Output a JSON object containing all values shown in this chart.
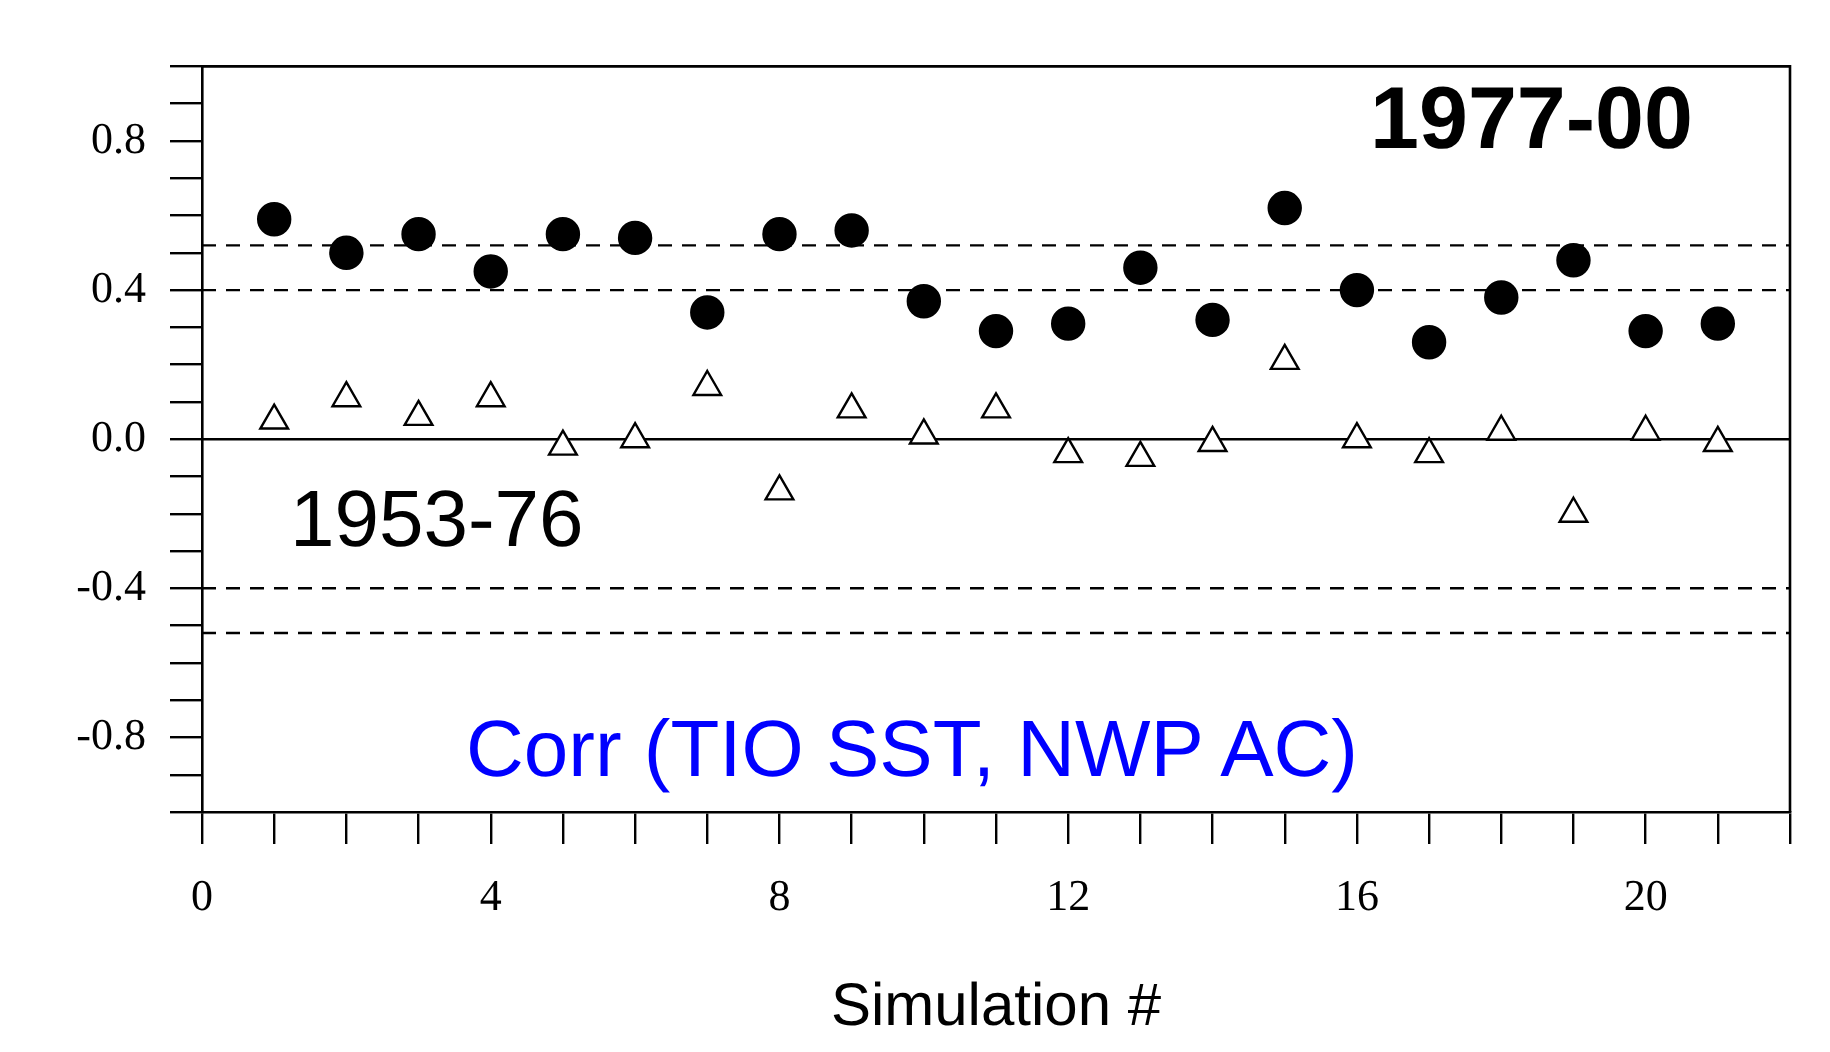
{
  "chart_data": {
    "type": "scatter",
    "xlabel": "Simulation #",
    "x": [
      1,
      2,
      3,
      4,
      5,
      6,
      7,
      8,
      9,
      10,
      11,
      12,
      13,
      14,
      15,
      16,
      17,
      18,
      19,
      20,
      21
    ],
    "series": [
      {
        "color": "#000000",
        "marker": "circle",
        "values": [
          0.59,
          0.5,
          0.55,
          0.45,
          0.55,
          0.54,
          0.34,
          0.55,
          0.56,
          0.37,
          0.29,
          0.31,
          0.46,
          0.32,
          0.62,
          0.4,
          0.26,
          0.38,
          0.48,
          0.29,
          0.31
        ]
      },
      {
        "color": "#000000",
        "marker": "triangle",
        "values": [
          0.05,
          0.11,
          0.06,
          0.11,
          -0.02,
          0.0,
          0.14,
          -0.14,
          0.08,
          0.01,
          0.08,
          -0.04,
          -0.05,
          -0.01,
          0.21,
          0.0,
          -0.04,
          0.02,
          -0.2,
          0.02,
          -0.01
        ]
      }
    ],
    "xlim": [
      0,
      22
    ],
    "xticks": [
      0,
      {
        "value": 1,
        "label": null
      },
      {
        "value": 2,
        "label": null
      },
      {
        "value": 3,
        "label": null
      },
      4,
      {
        "value": 5,
        "label": null
      },
      {
        "value": 6,
        "label": null
      },
      {
        "value": 7,
        "label": null
      },
      8,
      {
        "value": 9,
        "label": null
      },
      {
        "value": 10,
        "label": null
      },
      {
        "value": 11,
        "label": null
      },
      12,
      {
        "value": 13,
        "label": null
      },
      {
        "value": 14,
        "label": null
      },
      {
        "value": 15,
        "label": null
      },
      16,
      {
        "value": 17,
        "label": null
      },
      {
        "value": 18,
        "label": null
      },
      {
        "value": 19,
        "label": null
      },
      20,
      {
        "value": 21,
        "label": null
      },
      {
        "value": 22,
        "label": null
      }
    ],
    "ylim": [
      -1,
      1
    ],
    "yticks": [
      {
        "value": -1,
        "label": null
      },
      {
        "value": -0.9,
        "label": null
      },
      {
        "value": -0.8,
        "label": "-0.8"
      },
      {
        "value": -0.7,
        "label": null
      },
      {
        "value": -0.6,
        "label": null
      },
      {
        "value": -0.5,
        "label": null
      },
      {
        "value": -0.4,
        "label": "-0.4"
      },
      {
        "value": -0.3,
        "label": null
      },
      {
        "value": -0.2,
        "label": null
      },
      {
        "value": -0.1,
        "label": null
      },
      {
        "value": 0,
        "label": "0.0"
      },
      {
        "value": 0.1,
        "label": null
      },
      {
        "value": 0.2,
        "label": null
      },
      {
        "value": 0.3,
        "label": null
      },
      {
        "value": 0.4,
        "label": "0.4"
      },
      {
        "value": 0.5,
        "label": null
      },
      {
        "value": 0.6,
        "label": null
      },
      {
        "value": 0.7,
        "label": null
      },
      {
        "value": 0.8,
        "label": "0.8"
      },
      {
        "value": 0.9,
        "label": null
      },
      {
        "value": 1,
        "label": null
      }
    ],
    "ref_lines": [
      {
        "axis": "y",
        "value": 0,
        "line_style": "solid",
        "color": "#000000"
      },
      {
        "axis": "y",
        "value": 0.52,
        "line_style": "dashed",
        "color": "#000000"
      },
      {
        "axis": "y",
        "value": 0.4,
        "line_style": "dashed",
        "color": "#000000"
      },
      {
        "axis": "y",
        "value": -0.4,
        "line_style": "dashed",
        "color": "#000000"
      },
      {
        "axis": "y",
        "value": -0.52,
        "line_style": "dashed",
        "color": "#000000"
      }
    ],
    "annotations": [
      "1977-00",
      "1953-76",
      "Corr (TIO SST, NWP AC)"
    ],
    "grid": false,
    "legend": false
  }
}
